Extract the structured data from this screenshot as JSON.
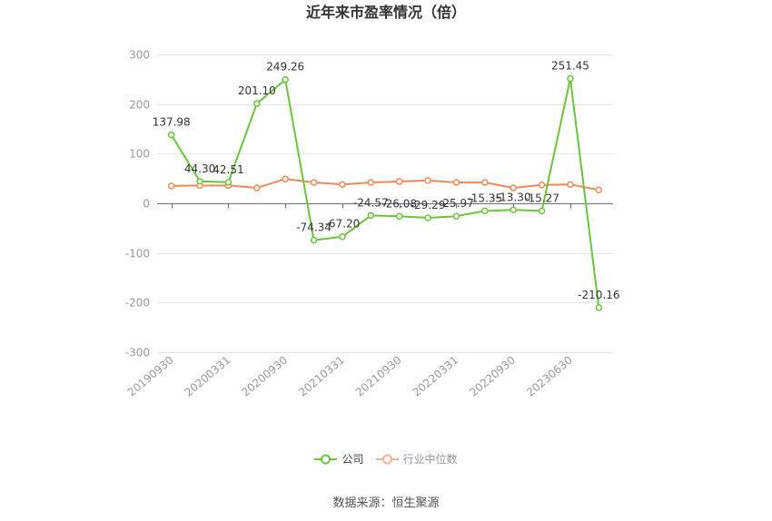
{
  "chart_data": {
    "type": "line",
    "title": "近年来市盈率情况（倍）",
    "categories": [
      "20190930",
      "",
      "20200331",
      "",
      "20200930",
      "",
      "20210331",
      "",
      "20210930",
      "",
      "20220331",
      "",
      "20220930",
      "",
      "20230630",
      ""
    ],
    "ylim": [
      -300,
      300
    ],
    "yticks": [
      300,
      200,
      100,
      0,
      -100,
      -200,
      -300
    ],
    "grid": true,
    "legend": "bottom",
    "series": [
      {
        "name": "公司",
        "color": "#6cc43c",
        "data_labels": true,
        "values": [
          137.98,
          44.3,
          42.51,
          201.1,
          249.26,
          -74.34,
          -67.2,
          -24.57,
          -26.08,
          -29.29,
          -25.97,
          -15.35,
          -13.3,
          -15.27,
          251.45,
          -210.16
        ]
      },
      {
        "name": "行业中位数",
        "color": "#ee8a5a",
        "data_labels": false,
        "values": [
          35,
          36,
          36,
          31,
          49,
          42,
          38,
          42,
          44,
          46,
          42,
          42,
          31,
          37,
          38,
          27
        ]
      }
    ]
  },
  "source": "数据来源：恒生聚源"
}
